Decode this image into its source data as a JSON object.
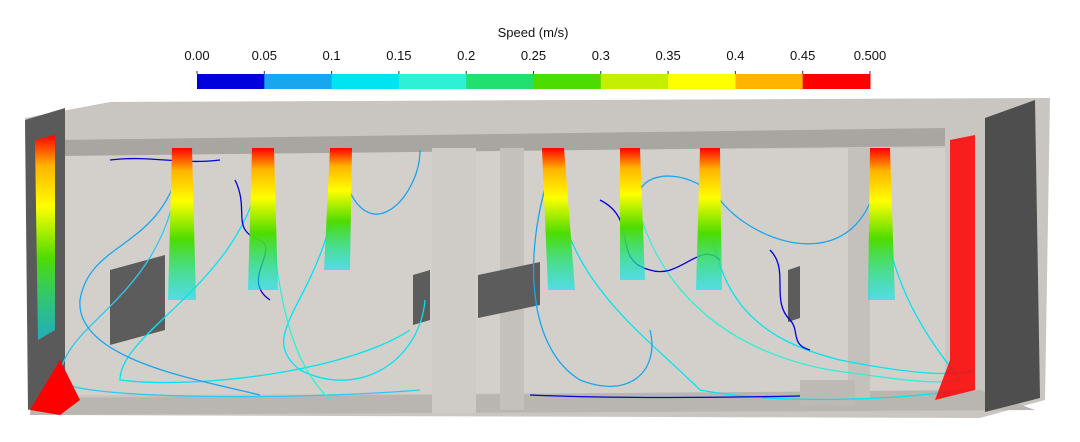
{
  "colorbar": {
    "title": "Speed (m/s)",
    "range": [
      0,
      0.5
    ],
    "ticks": [
      {
        "value": 0,
        "label": "0.00"
      },
      0.05,
      0.1,
      0.15,
      0.2,
      0.25,
      0.3,
      0.35,
      0.4,
      0.45,
      {
        "value": 0.5,
        "label": "0.500"
      }
    ],
    "colors": [
      "#0000dc",
      "#18a6ee",
      "#00e4f2",
      "#2ef0d6",
      "#22e070",
      "#4edc00",
      "#c4f000",
      "#ffff00",
      "#ffb400",
      "#ff0000"
    ]
  }
}
